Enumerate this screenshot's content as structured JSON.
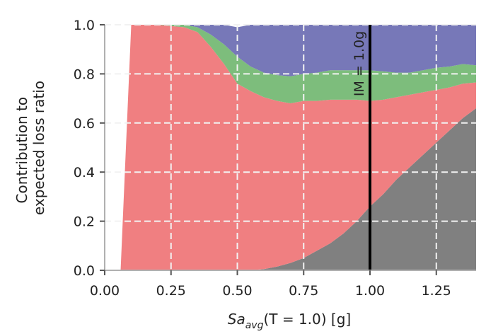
{
  "chart_data": {
    "type": "area",
    "stacked": true,
    "normalized": true,
    "xlabel": {
      "base": "Sa",
      "sub": "avg",
      "rest": "(T = 1.0) [g]"
    },
    "ylabel_lines": [
      "Contribution to",
      "expected loss ratio"
    ],
    "xlim": [
      0,
      1.4
    ],
    "ylim": [
      0,
      1.0
    ],
    "xticks": [
      "0.00",
      "0.25",
      "0.50",
      "0.75",
      "1.00",
      "1.25"
    ],
    "xtick_values": [
      0,
      0.25,
      0.5,
      0.75,
      1.0,
      1.25
    ],
    "yticks": [
      "0.0",
      "0.2",
      "0.4",
      "0.6",
      "0.8",
      "1.0"
    ],
    "ytick_values": [
      0,
      0.2,
      0.4,
      0.6,
      0.8,
      1.0
    ],
    "grid": true,
    "x": [
      0.05,
      0.06,
      0.1,
      0.2,
      0.3,
      0.35,
      0.4,
      0.45,
      0.5,
      0.55,
      0.6,
      0.65,
      0.7,
      0.75,
      0.8,
      0.85,
      0.9,
      0.95,
      1.0,
      1.05,
      1.1,
      1.15,
      1.2,
      1.25,
      1.3,
      1.35,
      1.4
    ],
    "series": [
      {
        "color": "#808080",
        "values": [
          0,
          0,
          0,
          0,
          0,
          0,
          0,
          0,
          0,
          0,
          0.005,
          0.015,
          0.03,
          0.05,
          0.08,
          0.11,
          0.15,
          0.2,
          0.26,
          0.31,
          0.37,
          0.42,
          0.47,
          0.52,
          0.57,
          0.62,
          0.66
        ]
      },
      {
        "color": "#f07f81",
        "values": [
          0,
          0,
          1,
          1,
          0.99,
          0.97,
          0.91,
          0.84,
          0.76,
          0.73,
          0.7,
          0.675,
          0.65,
          0.64,
          0.61,
          0.585,
          0.545,
          0.495,
          0.43,
          0.385,
          0.335,
          0.295,
          0.255,
          0.215,
          0.175,
          0.14,
          0.105
        ]
      },
      {
        "color": "#7dbd7c",
        "values": [
          0,
          0,
          0,
          0,
          0.01,
          0.02,
          0.05,
          0.08,
          0.11,
          0.1,
          0.1,
          0.105,
          0.11,
          0.11,
          0.115,
          0.12,
          0.12,
          0.12,
          0.125,
          0.115,
          0.1,
          0.09,
          0.09,
          0.09,
          0.085,
          0.08,
          0.07
        ]
      },
      {
        "color": "#7778b8",
        "values": [
          0,
          0,
          0,
          0,
          0,
          0.01,
          0.04,
          0.08,
          0.12,
          0.17,
          0.195,
          0.205,
          0.21,
          0.2,
          0.195,
          0.185,
          0.185,
          0.185,
          0.185,
          0.19,
          0.195,
          0.195,
          0.185,
          0.175,
          0.17,
          0.16,
          0.165
        ]
      }
    ],
    "vline": {
      "x": 1.0,
      "label": "IM = 1.0g",
      "color": "#000000"
    },
    "colors": {
      "axis": "#b0b0b0",
      "grid": "#f2f2f2",
      "text": "#222222"
    }
  }
}
